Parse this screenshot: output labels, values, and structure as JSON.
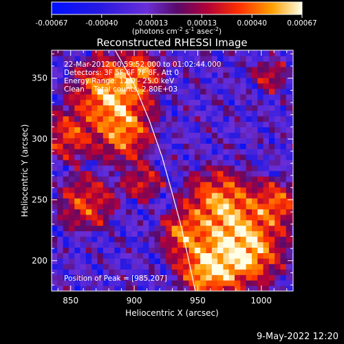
{
  "chart_data": {
    "type": "heatmap",
    "title": "Reconstructed RHESSI Image",
    "xlabel": "Heliocentric X (arcsec)",
    "ylabel": "Heliocentric Y (arcsec)",
    "xlim": [
      835,
      1025
    ],
    "ylim": [
      175,
      373
    ],
    "x_ticks": [
      850,
      900,
      950,
      1000
    ],
    "y_ticks": [
      200,
      250,
      300,
      350
    ],
    "colorbar": {
      "ticks": [
        "-0.00067",
        "-0.00040",
        "-0.00013",
        "0.00013",
        "0.00040",
        "0.00067"
      ],
      "range": [
        -0.00067,
        0.00067
      ],
      "units_prefix": "(photons cm",
      "units_exp1": "-2",
      "units_mid": " s",
      "units_exp2": "-1",
      "units_mid2": " asec",
      "units_exp3": "-2",
      "units_suffix": ")"
    },
    "annotations": [
      "22-Mar-2012 00:59:52.000 to 01:02:44.000",
      "Detectors: 3F 5F 6F 7F 8F, Att 0",
      "Energy Range: 12.0 - 25.0 keV",
      "Clean    Total counts: 2.80E+03"
    ],
    "peak_label": "Position of Peak = [985,207]",
    "limb_curve": [
      [
        885,
        373
      ],
      [
        900,
        345
      ],
      [
        912,
        315
      ],
      [
        922,
        285
      ],
      [
        930,
        255
      ],
      [
        937,
        228
      ],
      [
        943,
        200
      ],
      [
        948,
        175
      ]
    ],
    "hot_regions": [
      {
        "x": 880,
        "y": 335,
        "r": 28,
        "level": 0.9
      },
      {
        "x": 890,
        "y": 300,
        "r": 20,
        "level": 0.6
      },
      {
        "x": 845,
        "y": 300,
        "r": 18,
        "level": 0.55
      },
      {
        "x": 905,
        "y": 355,
        "r": 14,
        "level": 0.5
      },
      {
        "x": 860,
        "y": 245,
        "r": 22,
        "level": 0.55
      },
      {
        "x": 905,
        "y": 262,
        "r": 14,
        "level": 0.45
      },
      {
        "x": 965,
        "y": 245,
        "r": 26,
        "level": 0.8
      },
      {
        "x": 985,
        "y": 207,
        "r": 26,
        "level": 1.0
      },
      {
        "x": 955,
        "y": 190,
        "r": 22,
        "level": 0.85
      },
      {
        "x": 1010,
        "y": 245,
        "r": 18,
        "level": 0.6
      },
      {
        "x": 935,
        "y": 220,
        "r": 16,
        "level": 0.6
      },
      {
        "x": 1005,
        "y": 350,
        "r": 14,
        "level": 0.4
      }
    ]
  },
  "footer": {
    "timestamp": "9-May-2022 12:20"
  }
}
